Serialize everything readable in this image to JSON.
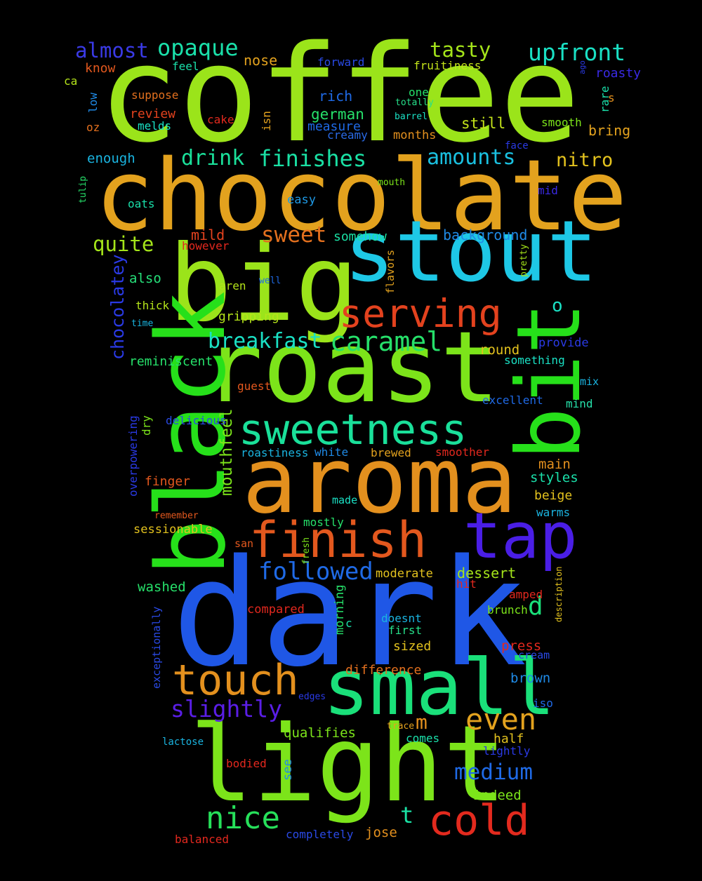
{
  "words": [
    {
      "text": "coffee",
      "color": "#9be41a"
    },
    {
      "text": "chocolate",
      "color": "#e3a21e"
    },
    {
      "text": "dark",
      "color": "#1f57e6"
    },
    {
      "text": "big",
      "color": "#9be41a"
    },
    {
      "text": "stout",
      "color": "#1ec8e6"
    },
    {
      "text": "roast",
      "color": "#7ce41a"
    },
    {
      "text": "aroma",
      "color": "#e3901e"
    },
    {
      "text": "black",
      "color": "#26e01a"
    },
    {
      "text": "bit",
      "color": "#26e01a"
    },
    {
      "text": "light",
      "color": "#7ce41a"
    },
    {
      "text": "small",
      "color": "#1ae07a"
    },
    {
      "text": "tap",
      "color": "#4a1ee6"
    },
    {
      "text": "finish",
      "color": "#e3581e"
    },
    {
      "text": "sweetness",
      "color": "#1ae09a"
    },
    {
      "text": "serving",
      "color": "#e3421e"
    },
    {
      "text": "touch",
      "color": "#e3901e"
    },
    {
      "text": "cold",
      "color": "#e32a1e"
    },
    {
      "text": "nice",
      "color": "#26e05a"
    },
    {
      "text": "even",
      "color": "#e3a21e"
    },
    {
      "text": "caramel",
      "color": "#26e06a"
    },
    {
      "text": "breakfast",
      "color": "#1ae0c4"
    },
    {
      "text": "followed",
      "color": "#1f6ae6"
    },
    {
      "text": "finishes",
      "color": "#1ae0a4"
    },
    {
      "text": "upfront",
      "color": "#1ae0c4"
    },
    {
      "text": "opaque",
      "color": "#1ae0aa"
    },
    {
      "text": "almost",
      "color": "#3a3ae6"
    },
    {
      "text": "tasty",
      "color": "#a4e41a"
    },
    {
      "text": "medium",
      "color": "#1f6ae6"
    },
    {
      "text": "slightly",
      "color": "#5a1ee6"
    },
    {
      "text": "drink",
      "color": "#1ae09a"
    },
    {
      "text": "amounts",
      "color": "#1ac0e0"
    },
    {
      "text": "nitro",
      "color": "#e3c21e"
    },
    {
      "text": "quite",
      "color": "#a4e41a"
    },
    {
      "text": "sweet",
      "color": "#e3701e"
    },
    {
      "text": "chocolatey",
      "color": "#2a3ae6"
    },
    {
      "text": "mouthfeel",
      "color": "#7ce41a"
    },
    {
      "text": "o",
      "color": "#1ae0c4"
    },
    {
      "text": "d",
      "color": "#1ae07a"
    },
    {
      "text": "m",
      "color": "#e3901e"
    },
    {
      "text": "t",
      "color": "#1ae0a4"
    },
    {
      "text": "nose",
      "color": "#e3a21e"
    },
    {
      "text": "know",
      "color": "#e3581e"
    },
    {
      "text": "feel",
      "color": "#1ae0aa"
    },
    {
      "text": "ca",
      "color": "#b4e41a"
    },
    {
      "text": "forward",
      "color": "#2a4ae6"
    },
    {
      "text": "fruitiness",
      "color": "#c4e41a"
    },
    {
      "text": "ago",
      "color": "#2a3ae6"
    },
    {
      "text": "roasty",
      "color": "#3a2ae6"
    },
    {
      "text": "suppose",
      "color": "#e3701e"
    },
    {
      "text": "rich",
      "color": "#1f6ae6"
    },
    {
      "text": "one",
      "color": "#26e06a"
    },
    {
      "text": "totally",
      "color": "#26e08a"
    },
    {
      "text": "rare",
      "color": "#1ae0aa"
    },
    {
      "text": "s",
      "color": "#e3901e"
    },
    {
      "text": "low",
      "color": "#1f8ae6"
    },
    {
      "text": "review",
      "color": "#e3421e"
    },
    {
      "text": "cake",
      "color": "#e32a1e"
    },
    {
      "text": "isn",
      "color": "#e3a21e"
    },
    {
      "text": "german",
      "color": "#26e06a"
    },
    {
      "text": "barrel",
      "color": "#1ae0c4"
    },
    {
      "text": "still",
      "color": "#c4e41a"
    },
    {
      "text": "smooth",
      "color": "#7ce41a"
    },
    {
      "text": "oz",
      "color": "#e3701e"
    },
    {
      "text": "melds",
      "color": "#1ae0c4"
    },
    {
      "text": "measure",
      "color": "#1f6ae6"
    },
    {
      "text": "creamy",
      "color": "#2a6ae6"
    },
    {
      "text": "months",
      "color": "#e3901e"
    },
    {
      "text": "bring",
      "color": "#e3a21e"
    },
    {
      "text": "face",
      "color": "#2a3ae6"
    },
    {
      "text": "enough",
      "color": "#1ab4e0"
    },
    {
      "text": "tulip",
      "color": "#26e06a"
    },
    {
      "text": "mouth",
      "color": "#7ce41a"
    },
    {
      "text": "mid",
      "color": "#3a2ae6"
    },
    {
      "text": "oats",
      "color": "#1ae0aa"
    },
    {
      "text": "easy",
      "color": "#1f9ae6"
    },
    {
      "text": "mild",
      "color": "#e3421e"
    },
    {
      "text": "background",
      "color": "#1f8ae6"
    },
    {
      "text": "however",
      "color": "#e3281e"
    },
    {
      "text": "somehow",
      "color": "#1ae0a4"
    },
    {
      "text": "pretty",
      "color": "#a4e41a"
    },
    {
      "text": "flavors",
      "color": "#e3a21e"
    },
    {
      "text": "well",
      "color": "#1f6ae6"
    },
    {
      "text": "also",
      "color": "#26e07a"
    },
    {
      "text": "aren",
      "color": "#b4e41a"
    },
    {
      "text": "thick",
      "color": "#b4e41a"
    },
    {
      "text": "gripping",
      "color": "#b4e41a"
    },
    {
      "text": "time",
      "color": "#1ab4e0"
    },
    {
      "text": "round",
      "color": "#e3c21e"
    },
    {
      "text": "provide",
      "color": "#2a3ae6"
    },
    {
      "text": "reminiscent",
      "color": "#26e06a"
    },
    {
      "text": "something",
      "color": "#1ae0c4"
    },
    {
      "text": "guest",
      "color": "#e3581e"
    },
    {
      "text": "mix",
      "color": "#1ab4e0"
    },
    {
      "text": "excellent",
      "color": "#1f6ae6"
    },
    {
      "text": "mind",
      "color": "#26e0aa"
    },
    {
      "text": "dry",
      "color": "#7ce41a"
    },
    {
      "text": "delicious",
      "color": "#2a4ae6"
    },
    {
      "text": "overpowering",
      "color": "#2a3ae6"
    },
    {
      "text": "roastiness",
      "color": "#1ab4e0"
    },
    {
      "text": "white",
      "color": "#1f8ae6"
    },
    {
      "text": "brewed",
      "color": "#e3a21e"
    },
    {
      "text": "smoother",
      "color": "#e3281e"
    },
    {
      "text": "main",
      "color": "#e3901e"
    },
    {
      "text": "finger",
      "color": "#e3581e"
    },
    {
      "text": "styles",
      "color": "#1ae0aa"
    },
    {
      "text": "beige",
      "color": "#e3c21e"
    },
    {
      "text": "made",
      "color": "#1ae0c4"
    },
    {
      "text": "remember",
      "color": "#e3581e"
    },
    {
      "text": "warms",
      "color": "#1ab4e0"
    },
    {
      "text": "mostly",
      "color": "#26e06a"
    },
    {
      "text": "sessionable",
      "color": "#e3c21e"
    },
    {
      "text": "fresh",
      "color": "#7ce41a"
    },
    {
      "text": "san",
      "color": "#e3581e"
    },
    {
      "text": "moderate",
      "color": "#e3c21e"
    },
    {
      "text": "dessert",
      "color": "#a4e41a"
    },
    {
      "text": "washed",
      "color": "#26e06a"
    },
    {
      "text": "hit",
      "color": "#e3281e"
    },
    {
      "text": "description",
      "color": "#e3c21e"
    },
    {
      "text": "amped",
      "color": "#e3281e"
    },
    {
      "text": "compared",
      "color": "#e3281e"
    },
    {
      "text": "morning",
      "color": "#26e06a"
    },
    {
      "text": "brunch",
      "color": "#7ce41a"
    },
    {
      "text": "c",
      "color": "#1ae0aa"
    },
    {
      "text": "doesnt",
      "color": "#1ab4e0"
    },
    {
      "text": "first",
      "color": "#26e08a"
    },
    {
      "text": "exceptionally",
      "color": "#2a4ae6"
    },
    {
      "text": "sized",
      "color": "#e3c21e"
    },
    {
      "text": "press",
      "color": "#e3281e"
    },
    {
      "text": "cream",
      "color": "#2a4ae6"
    },
    {
      "text": "difference",
      "color": "#e3701e"
    },
    {
      "text": "brown",
      "color": "#1f8ae6"
    },
    {
      "text": "edges",
      "color": "#2a3ae6"
    },
    {
      "text": "iso",
      "color": "#1f6ae6"
    },
    {
      "text": "trace",
      "color": "#e3a21e"
    },
    {
      "text": "qualifies",
      "color": "#7ce41a"
    },
    {
      "text": "comes",
      "color": "#1ae0aa"
    },
    {
      "text": "half",
      "color": "#e3c21e"
    },
    {
      "text": "lactose",
      "color": "#1ab4e0"
    },
    {
      "text": "lightly",
      "color": "#2a3ae6"
    },
    {
      "text": "bodied",
      "color": "#e3281e"
    },
    {
      "text": "see",
      "color": "#1f8ae6"
    },
    {
      "text": "indeed",
      "color": "#7ce41a"
    },
    {
      "text": "balanced",
      "color": "#e3281e"
    },
    {
      "text": "completely",
      "color": "#2a4ae6"
    },
    {
      "text": "jose",
      "color": "#e3901e"
    }
  ]
}
